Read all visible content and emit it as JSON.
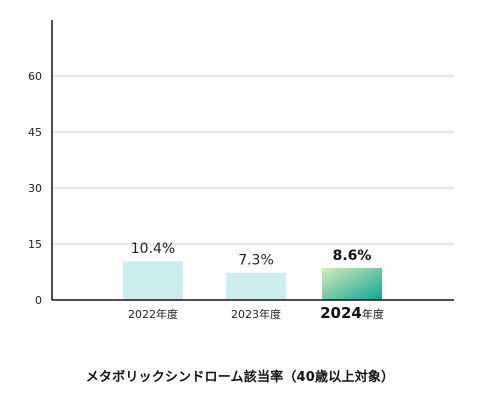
{
  "chart_data": {
    "type": "bar",
    "title": "メタボリックシンドローム該当率（40歳以上対象）",
    "categories": [
      {
        "num": "2022",
        "suffix": "年度",
        "highlight": false
      },
      {
        "num": "2023",
        "suffix": "年度",
        "highlight": false
      },
      {
        "num": "2024",
        "suffix": "年度",
        "highlight": true
      }
    ],
    "values": [
      10.4,
      7.3,
      8.6
    ],
    "value_labels": [
      "10.4%",
      "7.3%",
      "8.6%"
    ],
    "ylim": [
      0,
      75
    ],
    "yticks": [
      "0",
      "15",
      "30",
      "45",
      "60"
    ],
    "grid": true,
    "colors": {
      "bar": "#cdeeee",
      "highlight_start": "#d7ecb8",
      "highlight_end": "#0fa596",
      "axis": "#111111",
      "grid": "#cfcfcf"
    }
  }
}
